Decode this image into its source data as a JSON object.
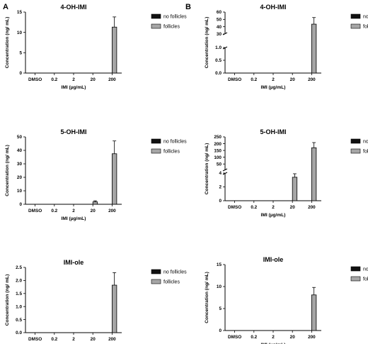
{
  "panel_letters": [
    "A",
    "B"
  ],
  "colors": {
    "no_follicles": "#111111",
    "follicles": "#a6a6a6",
    "axis": "#000000"
  },
  "chart_data": [
    {
      "type": "bar",
      "panel": "A",
      "title": "4-OH-IMI",
      "xlabel": "IMI (µg/mL)",
      "ylabel": "Concentration (ng/ mL)",
      "categories": [
        "DMSO",
        "0.2",
        "2",
        "20",
        "200"
      ],
      "ylim": [
        0,
        15
      ],
      "yticks": [
        0,
        5,
        10,
        15
      ],
      "series": [
        {
          "name": "no follicles",
          "values": [
            0,
            0,
            0,
            0,
            0
          ]
        },
        {
          "name": "follicles",
          "values": [
            0,
            0,
            0,
            0,
            11.3
          ],
          "errors": [
            0,
            0,
            0,
            0,
            2.5
          ]
        }
      ],
      "legend": "top-right"
    },
    {
      "type": "bar",
      "panel": "B",
      "title": "4-OH-IMI",
      "xlabel": "IMI (µg/mL)",
      "ylabel": "Concentration (ng/ mL)",
      "categories": [
        "DMSO",
        "0.2",
        "2",
        "20",
        "200"
      ],
      "broken_axis": {
        "lower": [
          0,
          1.0
        ],
        "upper": [
          30,
          60
        ]
      },
      "yticks_lower": [
        "0.0",
        "0.5",
        "1.0"
      ],
      "yticks_upper": [
        "30",
        "40",
        "50",
        "60"
      ],
      "series": [
        {
          "name": "no follicles",
          "values": [
            0,
            0,
            0,
            0,
            0
          ]
        },
        {
          "name": "follicles",
          "values": [
            0,
            0,
            0,
            0,
            43.5
          ],
          "errors": [
            0,
            0,
            0,
            0,
            9
          ]
        }
      ],
      "legend": "top-right"
    },
    {
      "type": "bar",
      "panel": "A",
      "title": "5-OH-IMI",
      "xlabel": "IMI (µg/mL)",
      "ylabel": "Concentration (ng/ mL)",
      "categories": [
        "DMSO",
        "0.2",
        "2",
        "20",
        "200"
      ],
      "ylim": [
        0,
        50
      ],
      "yticks": [
        0,
        10,
        20,
        30,
        40,
        50
      ],
      "series": [
        {
          "name": "no follicles",
          "values": [
            0,
            0,
            0,
            0,
            0
          ]
        },
        {
          "name": "follicles",
          "values": [
            0,
            0,
            0,
            1.8,
            37.5
          ],
          "errors": [
            0,
            0,
            0,
            0.8,
            9.5
          ]
        }
      ],
      "legend": "top-right"
    },
    {
      "type": "bar",
      "panel": "B",
      "title": "5-OH-IMI",
      "xlabel": "IMI (µg/mL)",
      "ylabel": "Concentration (ng/ mL)",
      "categories": [
        "DMSO",
        "0.2",
        "2",
        "20",
        "200"
      ],
      "broken_axis": {
        "lower": [
          0,
          4
        ],
        "upper": [
          4,
          250
        ]
      },
      "yticks_lower": [
        "0",
        "2",
        "4"
      ],
      "yticks_upper": [
        "50",
        "100",
        "150",
        "200",
        "250"
      ],
      "series": [
        {
          "name": "no follicles",
          "values": [
            0,
            0,
            0,
            0,
            0
          ]
        },
        {
          "name": "follicles",
          "values": [
            0,
            0,
            0,
            3.4,
            170
          ],
          "errors": [
            0,
            0,
            0,
            0.5,
            38
          ]
        }
      ],
      "legend": "top-right"
    },
    {
      "type": "bar",
      "panel": "A",
      "title": "IMI-ole",
      "xlabel": "IMI (µg/mL)",
      "ylabel": "Concentration (ng/ mL)",
      "categories": [
        "DMSO",
        "0.2",
        "2",
        "20",
        "200"
      ],
      "ylim": [
        0,
        2.5
      ],
      "yticks": [
        "0.0",
        "0.5",
        "1.0",
        "1.5",
        "2.0",
        "2.5"
      ],
      "series": [
        {
          "name": "no follicles",
          "values": [
            0,
            0,
            0,
            0,
            0
          ]
        },
        {
          "name": "follicles",
          "values": [
            0,
            0,
            0,
            0,
            1.82
          ],
          "errors": [
            0,
            0,
            0,
            0,
            0.48
          ]
        }
      ],
      "legend": "top-right"
    },
    {
      "type": "bar",
      "panel": "B",
      "title": "IMI-ole",
      "xlabel": "IMI (µg/mL)",
      "ylabel": "Concentration (ng/ mL)",
      "categories": [
        "DMSO",
        "0.2",
        "2",
        "20",
        "200"
      ],
      "ylim": [
        0,
        15
      ],
      "yticks": [
        0,
        5,
        10,
        15
      ],
      "series": [
        {
          "name": "no follicles",
          "values": [
            0,
            0,
            0,
            0,
            0
          ]
        },
        {
          "name": "follicles",
          "values": [
            0,
            0,
            0,
            0,
            8.1
          ],
          "errors": [
            0,
            0,
            0,
            0,
            1.7
          ]
        }
      ],
      "legend": "top-right"
    }
  ]
}
